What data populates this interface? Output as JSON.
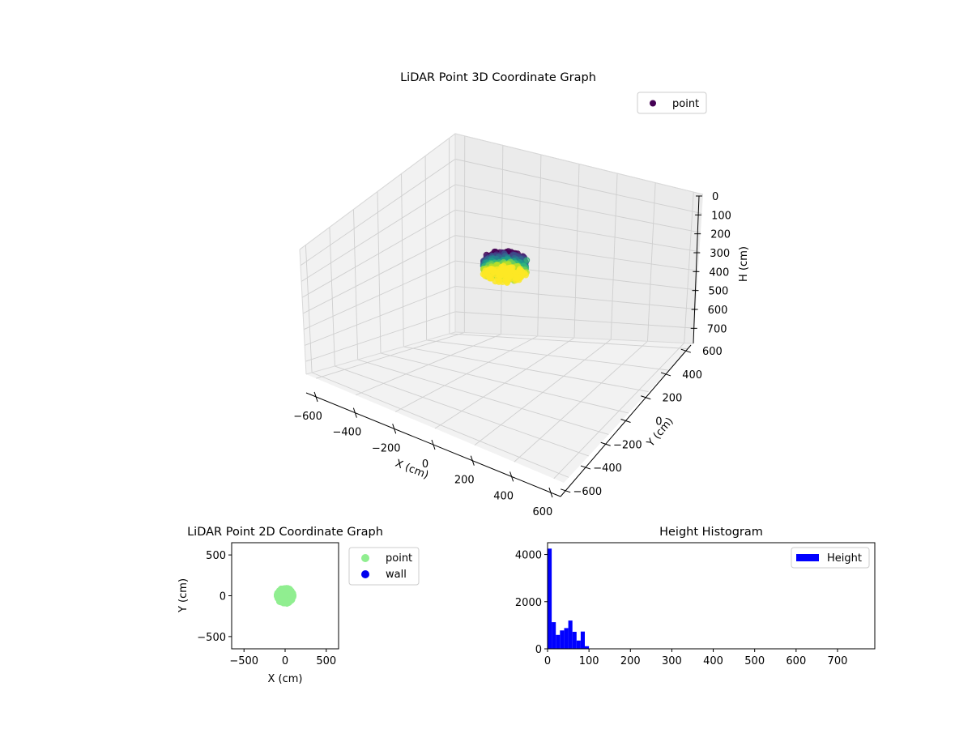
{
  "chart_data": [
    {
      "type": "scatter",
      "title": "LiDAR Point 3D Coordinate Graph",
      "xlabel": "X (cm)",
      "ylabel": "Y (cm)",
      "zlabel": "H (cm)",
      "xlim": [
        -650,
        650
      ],
      "ylim": [
        -650,
        650
      ],
      "zlim": [
        780,
        0
      ],
      "x_ticks": [
        -600,
        -400,
        -200,
        0,
        200,
        400,
        600
      ],
      "y_ticks": [
        -600,
        -400,
        -200,
        0,
        200,
        400,
        600
      ],
      "z_ticks": [
        0,
        100,
        200,
        300,
        400,
        500,
        600,
        700
      ],
      "colormap": "viridis",
      "grid": true,
      "legend": {
        "placement": "upper-right",
        "entries": [
          "point"
        ]
      },
      "legend_color": "#440154",
      "cluster": {
        "x_range": [
          -100,
          100
        ],
        "y_range": [
          -100,
          100
        ],
        "h_range": [
          0,
          100
        ]
      },
      "outlier": {
        "x": 60,
        "y": 100,
        "h": 40
      },
      "series": [
        {
          "name": "point"
        }
      ]
    },
    {
      "type": "scatter",
      "title": "LiDAR Point 2D Coordinate Graph",
      "xlabel": "X (cm)",
      "ylabel": "Y (cm)",
      "xlim": [
        -650,
        650
      ],
      "ylim": [
        -650,
        650
      ],
      "x_ticks": [
        -500,
        0,
        500
      ],
      "y_ticks": [
        -500,
        0,
        500
      ],
      "legend": {
        "placement": "outside-right",
        "entries": [
          "point",
          "wall"
        ]
      },
      "cluster": {
        "x_range": [
          -100,
          100
        ],
        "y_range": [
          -100,
          100
        ]
      },
      "series": [
        {
          "name": "point",
          "color": "#90ee90"
        },
        {
          "name": "wall",
          "color": "#0000ee"
        }
      ]
    },
    {
      "type": "bar",
      "title": "Height Histogram",
      "xlim": [
        0,
        790
      ],
      "ylim": [
        0,
        4500
      ],
      "x_ticks": [
        0,
        100,
        200,
        300,
        400,
        500,
        600,
        700
      ],
      "y_ticks": [
        0,
        2000,
        4000
      ],
      "bin_width": 10,
      "bin_edges": [
        0,
        10,
        20,
        30,
        40,
        50,
        60,
        70,
        80,
        90,
        100
      ],
      "values": [
        4250,
        1130,
        590,
        780,
        880,
        1200,
        720,
        350,
        730,
        110
      ],
      "legend": {
        "placement": "upper-right",
        "entries": [
          "Height"
        ]
      },
      "series": [
        {
          "name": "Height",
          "color": "#0000ff"
        }
      ]
    }
  ]
}
